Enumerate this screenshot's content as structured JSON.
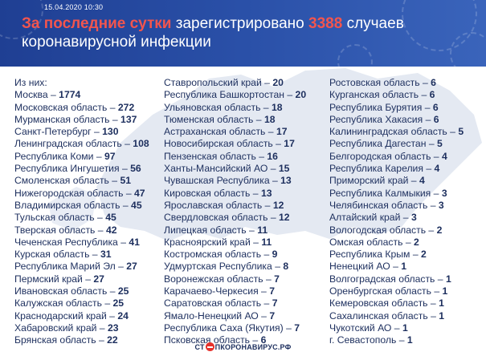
{
  "header": {
    "date": "15.04.2020 10:30",
    "headline_accent": "За последние сутки",
    "headline_mid": " зарегистрировано ",
    "headline_count": "3388",
    "headline_end": " случаев коронавирусной инфекции"
  },
  "colors": {
    "header_blue": "#2a50a8",
    "accent_red": "#f2554e",
    "text_navy": "#1d2f5e",
    "map_gray": "#e4e9f2"
  },
  "columns": [
    [
      {
        "label": "Из них:",
        "value": ""
      },
      {
        "label": "Москва – ",
        "value": "1774"
      },
      {
        "label": "Московская область – ",
        "value": "272"
      },
      {
        "label": "Мурманская область – ",
        "value": "137"
      },
      {
        "label": "Санкт-Петербург – ",
        "value": "130"
      },
      {
        "label": "Ленинградская область – ",
        "value": "108"
      },
      {
        "label": "Республика Коми – ",
        "value": "97"
      },
      {
        "label": "Республика Ингушетия – ",
        "value": "56"
      },
      {
        "label": "Смоленская область – ",
        "value": "51"
      },
      {
        "label": "Нижегородская область – ",
        "value": "47"
      },
      {
        "label": "Владимирская область – ",
        "value": "45"
      },
      {
        "label": "Тульская область – ",
        "value": "45"
      },
      {
        "label": "Тверская область – ",
        "value": "42"
      },
      {
        "label": "Чеченская Республика – ",
        "value": "41"
      },
      {
        "label": "Курская область – ",
        "value": "31"
      },
      {
        "label": "Республика Марий Эл – ",
        "value": "27"
      },
      {
        "label": "Пермский край – ",
        "value": "27"
      },
      {
        "label": "Ивановская область – ",
        "value": "25"
      },
      {
        "label": "Калужская область – ",
        "value": "25"
      },
      {
        "label": "Краснодарский край – ",
        "value": "24"
      },
      {
        "label": "Хабаровский край – ",
        "value": "23"
      },
      {
        "label": "Брянская область – ",
        "value": "22"
      }
    ],
    [
      {
        "label": "Ставропольский край – ",
        "value": "20"
      },
      {
        "label": "Республика Башкортостан – ",
        "value": "20"
      },
      {
        "label": "Ульяновская область – ",
        "value": "18"
      },
      {
        "label": "Тюменская область – ",
        "value": "18"
      },
      {
        "label": "Астраханская область – ",
        "value": "17"
      },
      {
        "label": "Новосибирская область – ",
        "value": "17"
      },
      {
        "label": "Пензенская область – ",
        "value": "16"
      },
      {
        "label": "Ханты-Мансийский АО – ",
        "value": "15"
      },
      {
        "label": "Чувашская Республика – ",
        "value": "13"
      },
      {
        "label": "Кировская область – ",
        "value": "13"
      },
      {
        "label": "Ярославская область – ",
        "value": "12"
      },
      {
        "label": "Свердловская область – ",
        "value": "12"
      },
      {
        "label": "Липецкая область – ",
        "value": "11"
      },
      {
        "label": "Красноярский край – ",
        "value": "11"
      },
      {
        "label": "Костромская область – ",
        "value": "9"
      },
      {
        "label": "Удмуртская Республика – ",
        "value": "8"
      },
      {
        "label": "Воронежская область – ",
        "value": "7"
      },
      {
        "label": "Карачаево-Черкесия – ",
        "value": "7"
      },
      {
        "label": "Саратовская область – ",
        "value": "7"
      },
      {
        "label": "Ямало-Ненецкий АО – ",
        "value": "7"
      },
      {
        "label": "Республика Саха (Якутия) – ",
        "value": "7"
      },
      {
        "label": "Псковская область – ",
        "value": "6"
      }
    ],
    [
      {
        "label": "Ростовская область – ",
        "value": "6"
      },
      {
        "label": "Курганская область – ",
        "value": "6"
      },
      {
        "label": "Республика Бурятия – ",
        "value": "6"
      },
      {
        "label": "Республика Хакасия – ",
        "value": "6"
      },
      {
        "label": "Калининградская область – ",
        "value": "5"
      },
      {
        "label": "Республика Дагестан – ",
        "value": "5"
      },
      {
        "label": "Белгородская область – ",
        "value": "4"
      },
      {
        "label": "Республика Карелия – ",
        "value": "4"
      },
      {
        "label": "Приморский край – ",
        "value": "4"
      },
      {
        "label": "Республика Калмыкия – ",
        "value": "3"
      },
      {
        "label": "Челябинская область – ",
        "value": "3"
      },
      {
        "label": "Алтайский край – ",
        "value": "3"
      },
      {
        "label": "Вологодская область – ",
        "value": "2"
      },
      {
        "label": "Омская область – ",
        "value": "2"
      },
      {
        "label": "Республика Крым – ",
        "value": "2"
      },
      {
        "label": "Ненецкий АО – ",
        "value": "1"
      },
      {
        "label": "Волгоградская область – ",
        "value": "1"
      },
      {
        "label": "Оренбургская область – ",
        "value": "1"
      },
      {
        "label": "Кемеровская область – ",
        "value": "1"
      },
      {
        "label": "Сахалинская область – ",
        "value": "1"
      },
      {
        "label": "Чукотский АО – ",
        "value": "1"
      },
      {
        "label": "г. Севастополь – ",
        "value": "1"
      }
    ]
  ],
  "footer": {
    "logo_left": "СТ",
    "logo_right": "ПКОРОНАВИРУС.РФ"
  }
}
